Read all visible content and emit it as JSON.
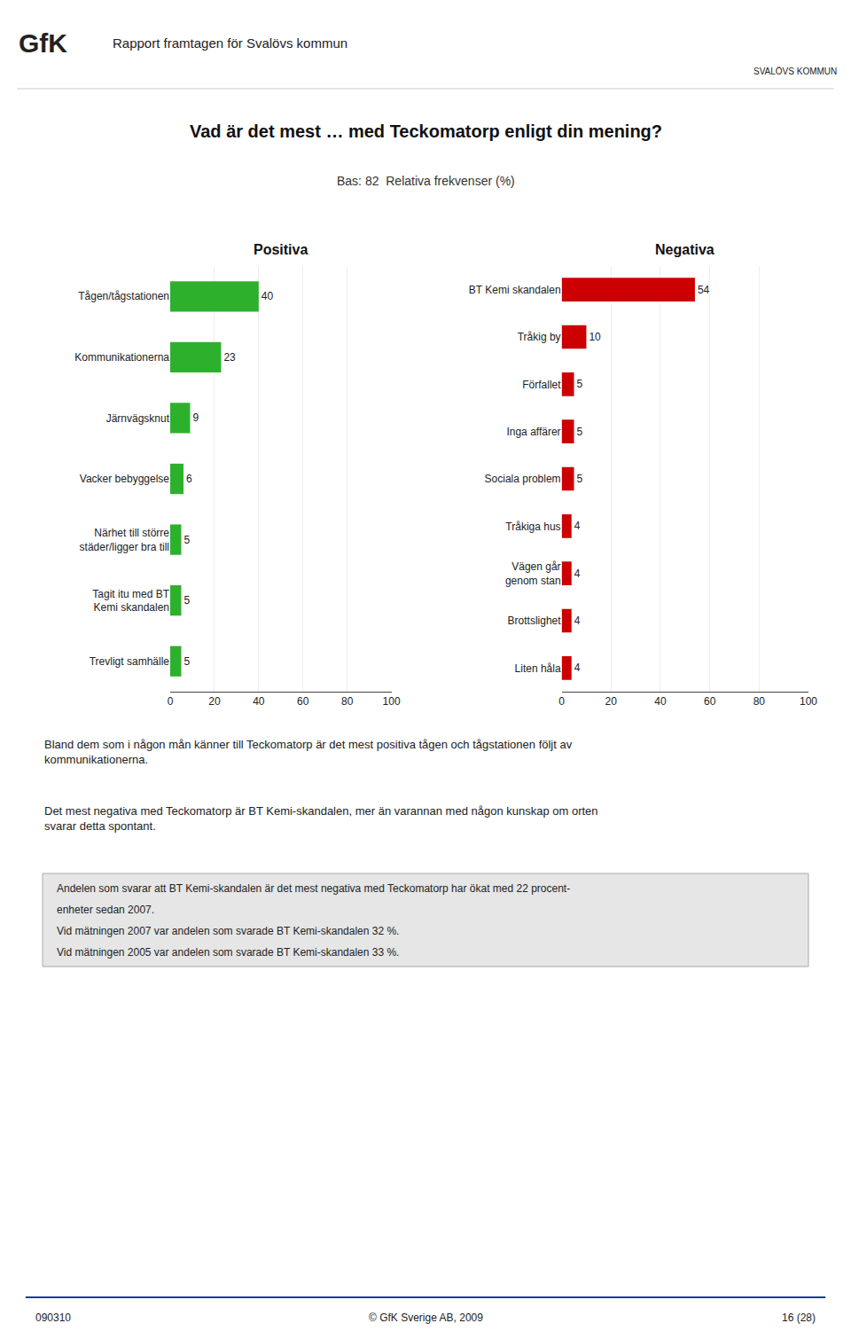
{
  "title": "Vad är det mest … med Teckomatorp enligt din mening?",
  "subtitle": "Bas: 82  Relativa frekvenser (%)",
  "annotations": [
    "GfK",
    "Rapport framtagen för Svalövs kommun",
    "SVALÖVS KOMMUN",
    "Bland dem som i någon mån känner till Teckomatorp är det mest positiva tågen och tågstationen följt av\nkommunikationerna.",
    "Det mest negativa med Teckomatorp är BT Kemi-skandalen, mer än varannan med någon kunskap om orten\nsvarar detta spontant.",
    "Andelen som svarar att BT Kemi-skandalen är det mest negativa med Teckomatorp har ökat med 22 procent-",
    "enheter sedan 2007.",
    "Vid mätningen 2007 var andelen som svarade BT Kemi-skandalen 32 %.",
    "Vid mätningen 2005 var andelen som svarade BT Kemi-skandalen 33 %.",
    "090310",
    "© GfK Sverige AB, 2009",
    "16 (28)"
  ],
  "chart_data": [
    {
      "type": "bar",
      "orientation": "horizontal",
      "title": "Positiva",
      "categories": [
        "Tågen/tågstationen",
        "Kommunikationerna",
        "Järnvägsknut",
        "Vacker bebyggelse",
        "Närhet till större\nstäder/ligger bra till",
        "Tagit itu med BT\nKemi skandalen",
        "Trevligt samhälle"
      ],
      "values": [
        40,
        23,
        9,
        6,
        5,
        5,
        5
      ],
      "color": "#2db12d",
      "xlim": [
        0,
        100
      ],
      "xticks": [
        0,
        20,
        40,
        60,
        80,
        100
      ],
      "grid": true,
      "data_labels": true
    },
    {
      "type": "bar",
      "orientation": "horizontal",
      "title": "Negativa",
      "categories": [
        "BT Kemi skandalen",
        "Tråkig by",
        "Förfallet",
        "Inga affärer",
        "Sociala problem",
        "Tråkiga hus",
        "Vägen går\ngenom stan",
        "Brottslighet",
        "Liten håla"
      ],
      "values": [
        54,
        10,
        5,
        5,
        5,
        4,
        4,
        4,
        4
      ],
      "color": "#cc0000",
      "xlim": [
        0,
        100
      ],
      "xticks": [
        0,
        20,
        40,
        60,
        80,
        100
      ],
      "grid": true,
      "data_labels": true
    }
  ]
}
